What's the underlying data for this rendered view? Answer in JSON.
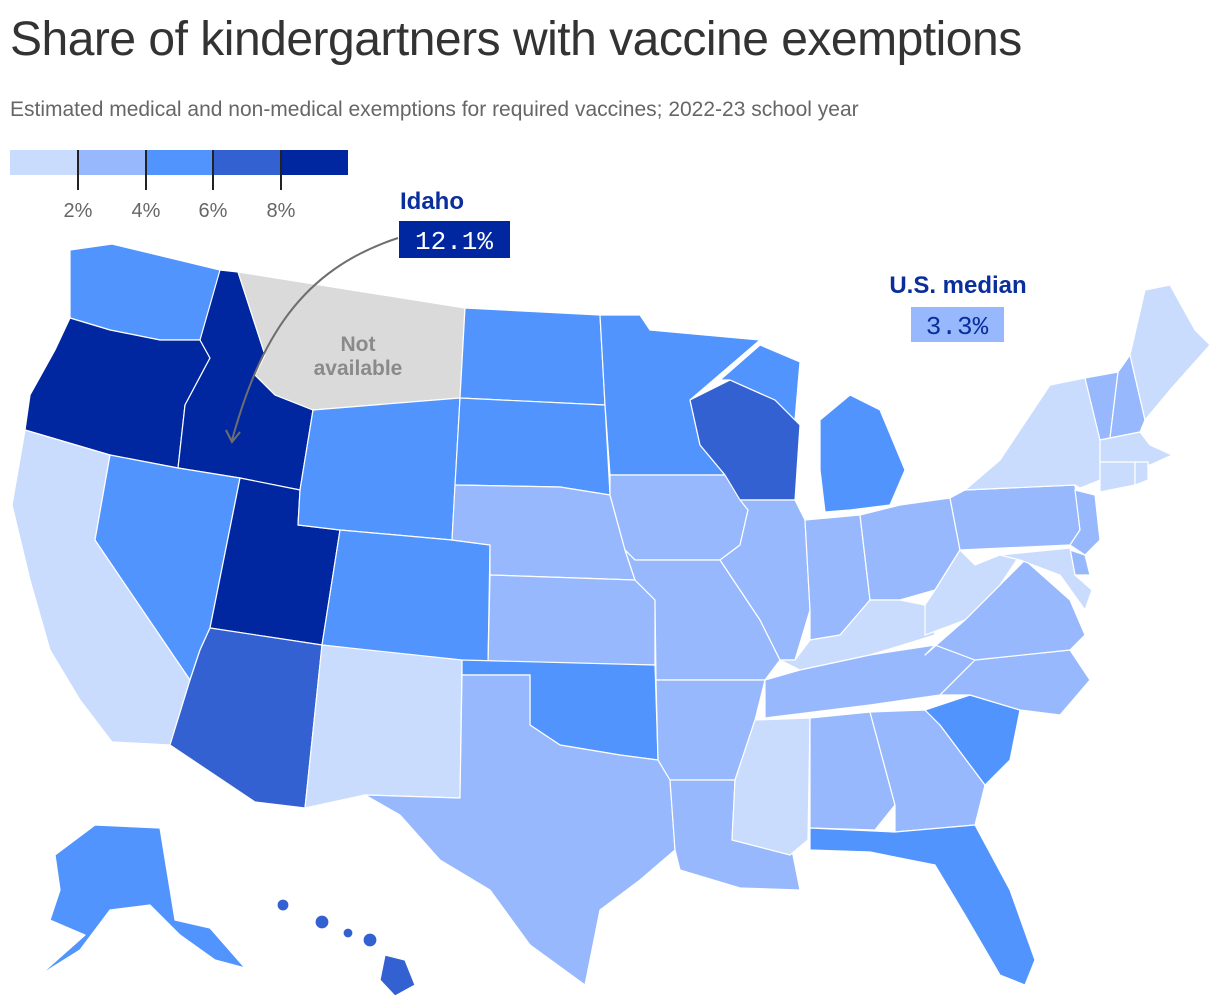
{
  "title": "Share of kindergartners with vaccine exemptions",
  "subtitle": "Estimated medical and non-medical exemptions for required vaccines; 2022-23 school year",
  "legend": {
    "bins": [
      {
        "color": "#c9dcfd"
      },
      {
        "color": "#97b8fc"
      },
      {
        "color": "#5194fd"
      },
      {
        "color": "#3461d1"
      },
      {
        "color": "#0027a0"
      }
    ],
    "tick_labels": [
      "2%",
      "4%",
      "6%",
      "8%"
    ]
  },
  "annotations": {
    "idaho": {
      "label": "Idaho",
      "value": "12.1%"
    },
    "us_median": {
      "label": "U.S. median",
      "value": "3.3%"
    },
    "not_available": {
      "line1": "Not",
      "line2": "available"
    }
  },
  "colors": {
    "na": "#dadada",
    "dark_text": "#0a2f9c",
    "median_box": "#97b8fc"
  },
  "map_data": {
    "type": "choropleth",
    "states": [
      {
        "id": "WA",
        "bin": 3
      },
      {
        "id": "OR",
        "bin": 5
      },
      {
        "id": "CA",
        "bin": 1
      },
      {
        "id": "ID",
        "bin": 5
      },
      {
        "id": "NV",
        "bin": 3
      },
      {
        "id": "UT",
        "bin": 5
      },
      {
        "id": "AZ",
        "bin": 4
      },
      {
        "id": "MT",
        "bin": 0
      },
      {
        "id": "WY",
        "bin": 3
      },
      {
        "id": "CO",
        "bin": 3
      },
      {
        "id": "NM",
        "bin": 1
      },
      {
        "id": "ND",
        "bin": 3
      },
      {
        "id": "SD",
        "bin": 3
      },
      {
        "id": "NE",
        "bin": 2
      },
      {
        "id": "KS",
        "bin": 2
      },
      {
        "id": "OK",
        "bin": 3
      },
      {
        "id": "TX",
        "bin": 2
      },
      {
        "id": "MN",
        "bin": 3
      },
      {
        "id": "IA",
        "bin": 2
      },
      {
        "id": "MO",
        "bin": 2
      },
      {
        "id": "AR",
        "bin": 2
      },
      {
        "id": "LA",
        "bin": 2
      },
      {
        "id": "WI",
        "bin": 4
      },
      {
        "id": "IL",
        "bin": 2
      },
      {
        "id": "MI",
        "bin": 3
      },
      {
        "id": "IN",
        "bin": 2
      },
      {
        "id": "OH",
        "bin": 2
      },
      {
        "id": "KY",
        "bin": 1
      },
      {
        "id": "TN",
        "bin": 2
      },
      {
        "id": "MS",
        "bin": 1
      },
      {
        "id": "AL",
        "bin": 2
      },
      {
        "id": "GA",
        "bin": 2
      },
      {
        "id": "FL",
        "bin": 3
      },
      {
        "id": "SC",
        "bin": 3
      },
      {
        "id": "NC",
        "bin": 2
      },
      {
        "id": "VA",
        "bin": 2
      },
      {
        "id": "WV",
        "bin": 1
      },
      {
        "id": "PA",
        "bin": 2
      },
      {
        "id": "NY",
        "bin": 1
      },
      {
        "id": "VT",
        "bin": 2
      },
      {
        "id": "NH",
        "bin": 2
      },
      {
        "id": "ME",
        "bin": 1
      },
      {
        "id": "MA",
        "bin": 1
      },
      {
        "id": "CT",
        "bin": 1
      },
      {
        "id": "RI",
        "bin": 1
      },
      {
        "id": "NJ",
        "bin": 2
      },
      {
        "id": "DE",
        "bin": 2
      },
      {
        "id": "MD",
        "bin": 1
      },
      {
        "id": "AK",
        "bin": 3
      },
      {
        "id": "HI",
        "bin": 4
      }
    ]
  }
}
